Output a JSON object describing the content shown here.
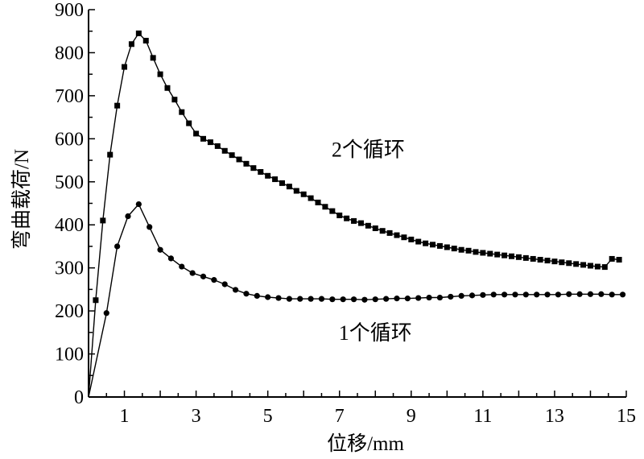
{
  "chart_data": {
    "type": "line",
    "title": "",
    "xlabel": "位移/mm",
    "ylabel": "弯曲载荷/N",
    "xlim": [
      0,
      15
    ],
    "ylim": [
      0,
      900
    ],
    "xticks": [
      1,
      3,
      5,
      7,
      9,
      11,
      13,
      15
    ],
    "yticks": [
      0,
      100,
      200,
      300,
      400,
      500,
      600,
      700,
      800,
      900
    ],
    "grid": false,
    "legend": "none",
    "series": [
      {
        "name": "2个循环",
        "marker": "square",
        "x": [
          0.2,
          0.4,
          0.6,
          0.8,
          1.0,
          1.2,
          1.4,
          1.6,
          1.8,
          2.0,
          2.2,
          2.4,
          2.6,
          2.8,
          3.0,
          3.2,
          3.4,
          3.6,
          3.8,
          4.0,
          4.2,
          4.4,
          4.6,
          4.8,
          5.0,
          5.2,
          5.4,
          5.6,
          5.8,
          6.0,
          6.2,
          6.4,
          6.6,
          6.8,
          7.0,
          7.2,
          7.4,
          7.6,
          7.8,
          8.0,
          8.2,
          8.4,
          8.6,
          8.8,
          9.0,
          9.2,
          9.4,
          9.6,
          9.8,
          10.0,
          10.2,
          10.4,
          10.6,
          10.8,
          11.0,
          11.2,
          11.4,
          11.6,
          11.8,
          12.0,
          12.2,
          12.4,
          12.6,
          12.8,
          13.0,
          13.2,
          13.4,
          13.6,
          13.8,
          14.0,
          14.2,
          14.4,
          14.6,
          14.8
        ],
        "values": [
          225,
          410,
          563,
          677,
          767,
          820,
          845,
          828,
          788,
          750,
          718,
          691,
          662,
          636,
          612,
          600,
          592,
          583,
          572,
          562,
          552,
          542,
          532,
          523,
          514,
          506,
          497,
          489,
          479,
          471,
          462,
          452,
          442,
          432,
          422,
          415,
          409,
          404,
          398,
          392,
          386,
          381,
          376,
          371,
          366,
          361,
          357,
          354,
          351,
          348,
          345,
          342,
          340,
          337,
          335,
          333,
          331,
          329,
          327,
          325,
          323,
          321,
          319,
          317,
          315,
          313,
          311,
          309,
          307,
          305,
          303,
          302,
          321,
          319
        ]
      },
      {
        "name": "1个循环",
        "marker": "circle",
        "x": [
          0.5,
          0.8,
          1.1,
          1.4,
          1.7,
          2.0,
          2.3,
          2.6,
          2.9,
          3.2,
          3.5,
          3.8,
          4.1,
          4.4,
          4.7,
          5.0,
          5.3,
          5.6,
          5.9,
          6.2,
          6.5,
          6.8,
          7.1,
          7.4,
          7.7,
          8.0,
          8.3,
          8.6,
          8.9,
          9.2,
          9.5,
          9.8,
          10.1,
          10.4,
          10.7,
          11.0,
          11.3,
          11.6,
          11.9,
          12.2,
          12.5,
          12.8,
          13.1,
          13.4,
          13.7,
          14.0,
          14.3,
          14.6,
          14.9
        ],
        "values": [
          195,
          350,
          420,
          448,
          395,
          342,
          322,
          303,
          288,
          280,
          272,
          262,
          249,
          240,
          235,
          232,
          230,
          228,
          228,
          228,
          228,
          227,
          227,
          227,
          226,
          227,
          228,
          229,
          229,
          230,
          231,
          231,
          233,
          235,
          236,
          237,
          238,
          238,
          238,
          238,
          238,
          238,
          238,
          239,
          239,
          239,
          239,
          238,
          238
        ]
      }
    ],
    "annotations": [
      {
        "text": "2个循环",
        "x": 7.8,
        "y": 575
      },
      {
        "text": "1个循环",
        "x": 8.0,
        "y": 150
      }
    ]
  }
}
